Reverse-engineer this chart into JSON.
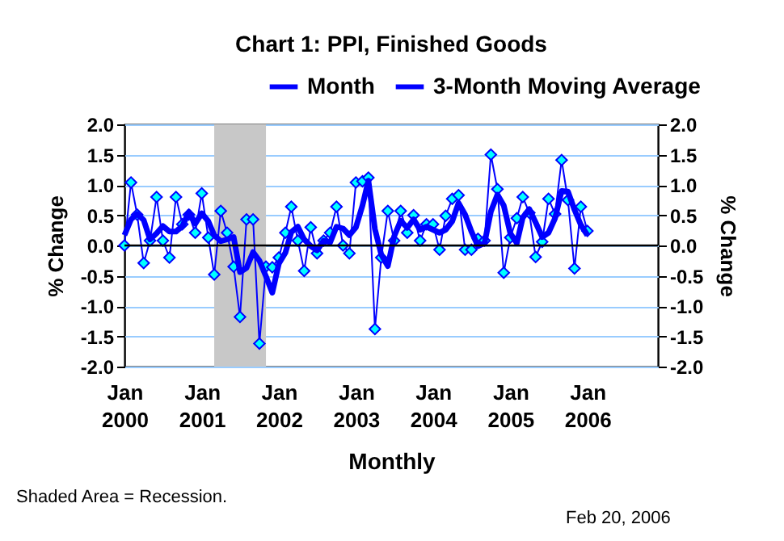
{
  "chart_data": {
    "type": "line",
    "title": "Chart 1: PPI, Finished Goods",
    "xlabel": "Monthly",
    "ylabel": "% Change",
    "y2label": "% Change",
    "x": [
      "2000-01",
      "2000-02",
      "2000-03",
      "2000-04",
      "2000-05",
      "2000-06",
      "2000-07",
      "2000-08",
      "2000-09",
      "2000-10",
      "2000-11",
      "2000-12",
      "2001-01",
      "2001-02",
      "2001-03",
      "2001-04",
      "2001-05",
      "2001-06",
      "2001-07",
      "2001-08",
      "2001-09",
      "2001-10",
      "2001-11",
      "2001-12",
      "2002-01",
      "2002-02",
      "2002-03",
      "2002-04",
      "2002-05",
      "2002-06",
      "2002-07",
      "2002-08",
      "2002-09",
      "2002-10",
      "2002-11",
      "2002-12",
      "2003-01",
      "2003-02",
      "2003-03",
      "2003-04",
      "2003-05",
      "2003-06",
      "2003-07",
      "2003-08",
      "2003-09",
      "2003-10",
      "2003-11",
      "2003-12",
      "2004-01",
      "2004-02",
      "2004-03",
      "2004-04",
      "2004-05",
      "2004-06",
      "2004-07",
      "2004-08",
      "2004-09",
      "2004-10",
      "2004-11",
      "2004-12",
      "2005-01",
      "2005-02",
      "2005-03",
      "2005-04",
      "2005-05",
      "2005-06",
      "2005-07",
      "2005-08",
      "2005-09",
      "2005-10",
      "2005-11",
      "2005-12",
      "2006-01"
    ],
    "series": [
      {
        "name": "Month",
        "color": "#0000ff",
        "marker": "diamond",
        "values": [
          0.0,
          1.04,
          0.51,
          -0.29,
          0.08,
          0.8,
          0.08,
          -0.2,
          0.8,
          0.35,
          0.51,
          0.21,
          0.86,
          0.13,
          -0.48,
          0.57,
          0.21,
          -0.35,
          -1.18,
          0.43,
          0.43,
          -1.62,
          -0.35,
          -0.36,
          -0.2,
          0.21,
          0.64,
          0.08,
          -0.42,
          0.3,
          -0.13,
          0.08,
          0.21,
          0.64,
          0.0,
          -0.13,
          1.04,
          1.06,
          1.12,
          -1.38,
          -0.2,
          0.57,
          0.08,
          0.57,
          0.21,
          0.5,
          0.08,
          0.35,
          0.35,
          -0.07,
          0.49,
          0.77,
          0.83,
          -0.07,
          -0.07,
          0.11,
          0.08,
          1.5,
          0.93,
          -0.45,
          0.13,
          0.45,
          0.8,
          0.54,
          -0.19,
          0.06,
          0.77,
          0.52,
          1.41,
          0.75,
          -0.38,
          0.64,
          0.24
        ]
      },
      {
        "name": "3-Month Moving Average",
        "color": "#0000ff",
        "marker": "none",
        "values": [
          0.17,
          0.43,
          0.52,
          0.42,
          0.1,
          0.2,
          0.32,
          0.23,
          0.23,
          0.32,
          0.55,
          0.36,
          0.53,
          0.4,
          0.17,
          0.07,
          0.1,
          0.14,
          -0.44,
          -0.37,
          -0.11,
          -0.25,
          -0.51,
          -0.78,
          -0.3,
          -0.12,
          0.22,
          0.31,
          0.1,
          -0.01,
          -0.08,
          0.08,
          0.05,
          0.31,
          0.28,
          0.17,
          0.3,
          0.66,
          1.07,
          0.27,
          -0.15,
          -0.34,
          0.15,
          0.41,
          0.29,
          0.43,
          0.26,
          0.31,
          0.26,
          0.21,
          0.26,
          0.4,
          0.7,
          0.51,
          0.23,
          -0.01,
          0.04,
          0.56,
          0.84,
          0.66,
          0.2,
          0.04,
          0.46,
          0.6,
          0.38,
          0.14,
          0.21,
          0.45,
          0.9,
          0.89,
          0.59,
          0.34,
          0.17
        ]
      }
    ],
    "xlim": [
      "2000-01",
      "2006-12"
    ],
    "xticks": [
      {
        "value": "2000-01",
        "label": "Jan 2000"
      },
      {
        "value": "2001-01",
        "label": "Jan 2001"
      },
      {
        "value": "2002-01",
        "label": "Jan 2002"
      },
      {
        "value": "2003-01",
        "label": "Jan 2003"
      },
      {
        "value": "2004-01",
        "label": "Jan 2004"
      },
      {
        "value": "2005-01",
        "label": "Jan 2005"
      },
      {
        "value": "2006-01",
        "label": "Jan 2006"
      }
    ],
    "ylim": [
      -2,
      2
    ],
    "yticks": [
      {
        "value": -2,
        "label": "-2.0"
      },
      {
        "value": -1.5,
        "label": "-1.5"
      },
      {
        "value": -1,
        "label": "-1.0"
      },
      {
        "value": -0.5,
        "label": "-0.5"
      },
      {
        "value": 0,
        "label": "0.0"
      },
      {
        "value": 0.5,
        "label": "0.5"
      },
      {
        "value": 1,
        "label": "1.0"
      },
      {
        "value": 1.5,
        "label": "1.5"
      },
      {
        "value": 2,
        "label": "2.0"
      }
    ],
    "y2lim": [
      -2,
      2
    ],
    "y2ticks": [
      {
        "value": -2,
        "label": "-2.0"
      },
      {
        "value": -1.5,
        "label": "-1.5"
      },
      {
        "value": -1,
        "label": "-1.0"
      },
      {
        "value": -0.5,
        "label": "-0.5"
      },
      {
        "value": 0,
        "label": "0.0"
      },
      {
        "value": 0.5,
        "label": "0.5"
      },
      {
        "value": 1,
        "label": "1.0"
      },
      {
        "value": 1.5,
        "label": "1.5"
      },
      {
        "value": 2,
        "label": "2.0"
      }
    ],
    "bands": [
      {
        "axis": "x",
        "from": "2001-03",
        "to": "2001-11",
        "color": "#c8c8c8"
      }
    ],
    "ref_lines": [
      {
        "axis": "y2",
        "value": 0,
        "color": "#000000"
      }
    ],
    "grid": "y",
    "legend": "top",
    "annotations": [
      "Shaded Area = Recession.",
      "Feb 20, 2006"
    ]
  }
}
